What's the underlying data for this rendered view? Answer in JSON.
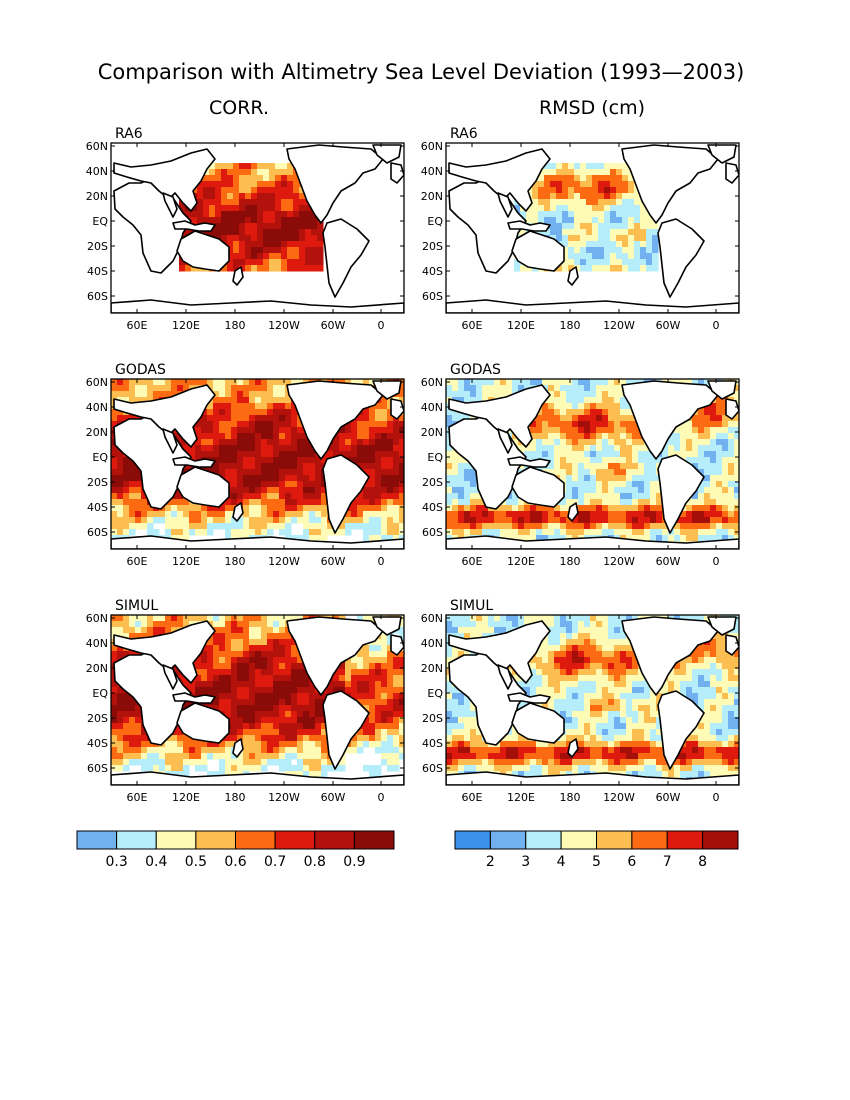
{
  "title": "Comparison with Altimetry Sea Level Deviation (1993—2003)",
  "column_titles": {
    "left": "CORR.",
    "right": "RMSD (cm)"
  },
  "row_labels": [
    "RA6",
    "GODAS",
    "SIMUL"
  ],
  "lat_labels": [
    "60N",
    "40N",
    "20N",
    "EQ",
    "20S",
    "40S",
    "60S"
  ],
  "lon_labels": [
    "60E",
    "120E",
    "180",
    "120W",
    "60W",
    "0"
  ],
  "corr_colorbar": {
    "colors": [
      "#72b1f0",
      "#b5eefa",
      "#fefbb7",
      "#fdbe51",
      "#fc6a12",
      "#de1a0e",
      "#b3110c",
      "#8b0b08"
    ],
    "labels": [
      "0.3",
      "0.4",
      "0.5",
      "0.6",
      "0.7",
      "0.8",
      "0.9"
    ]
  },
  "rmsd_colorbar": {
    "colors": [
      "#3c91eb",
      "#72b1f0",
      "#b5eefa",
      "#fefbb7",
      "#fdbe51",
      "#fc6a12",
      "#de1a0e",
      "#a50f0a"
    ],
    "labels": [
      "2",
      "3",
      "4",
      "5",
      "6",
      "7",
      "8"
    ]
  }
}
